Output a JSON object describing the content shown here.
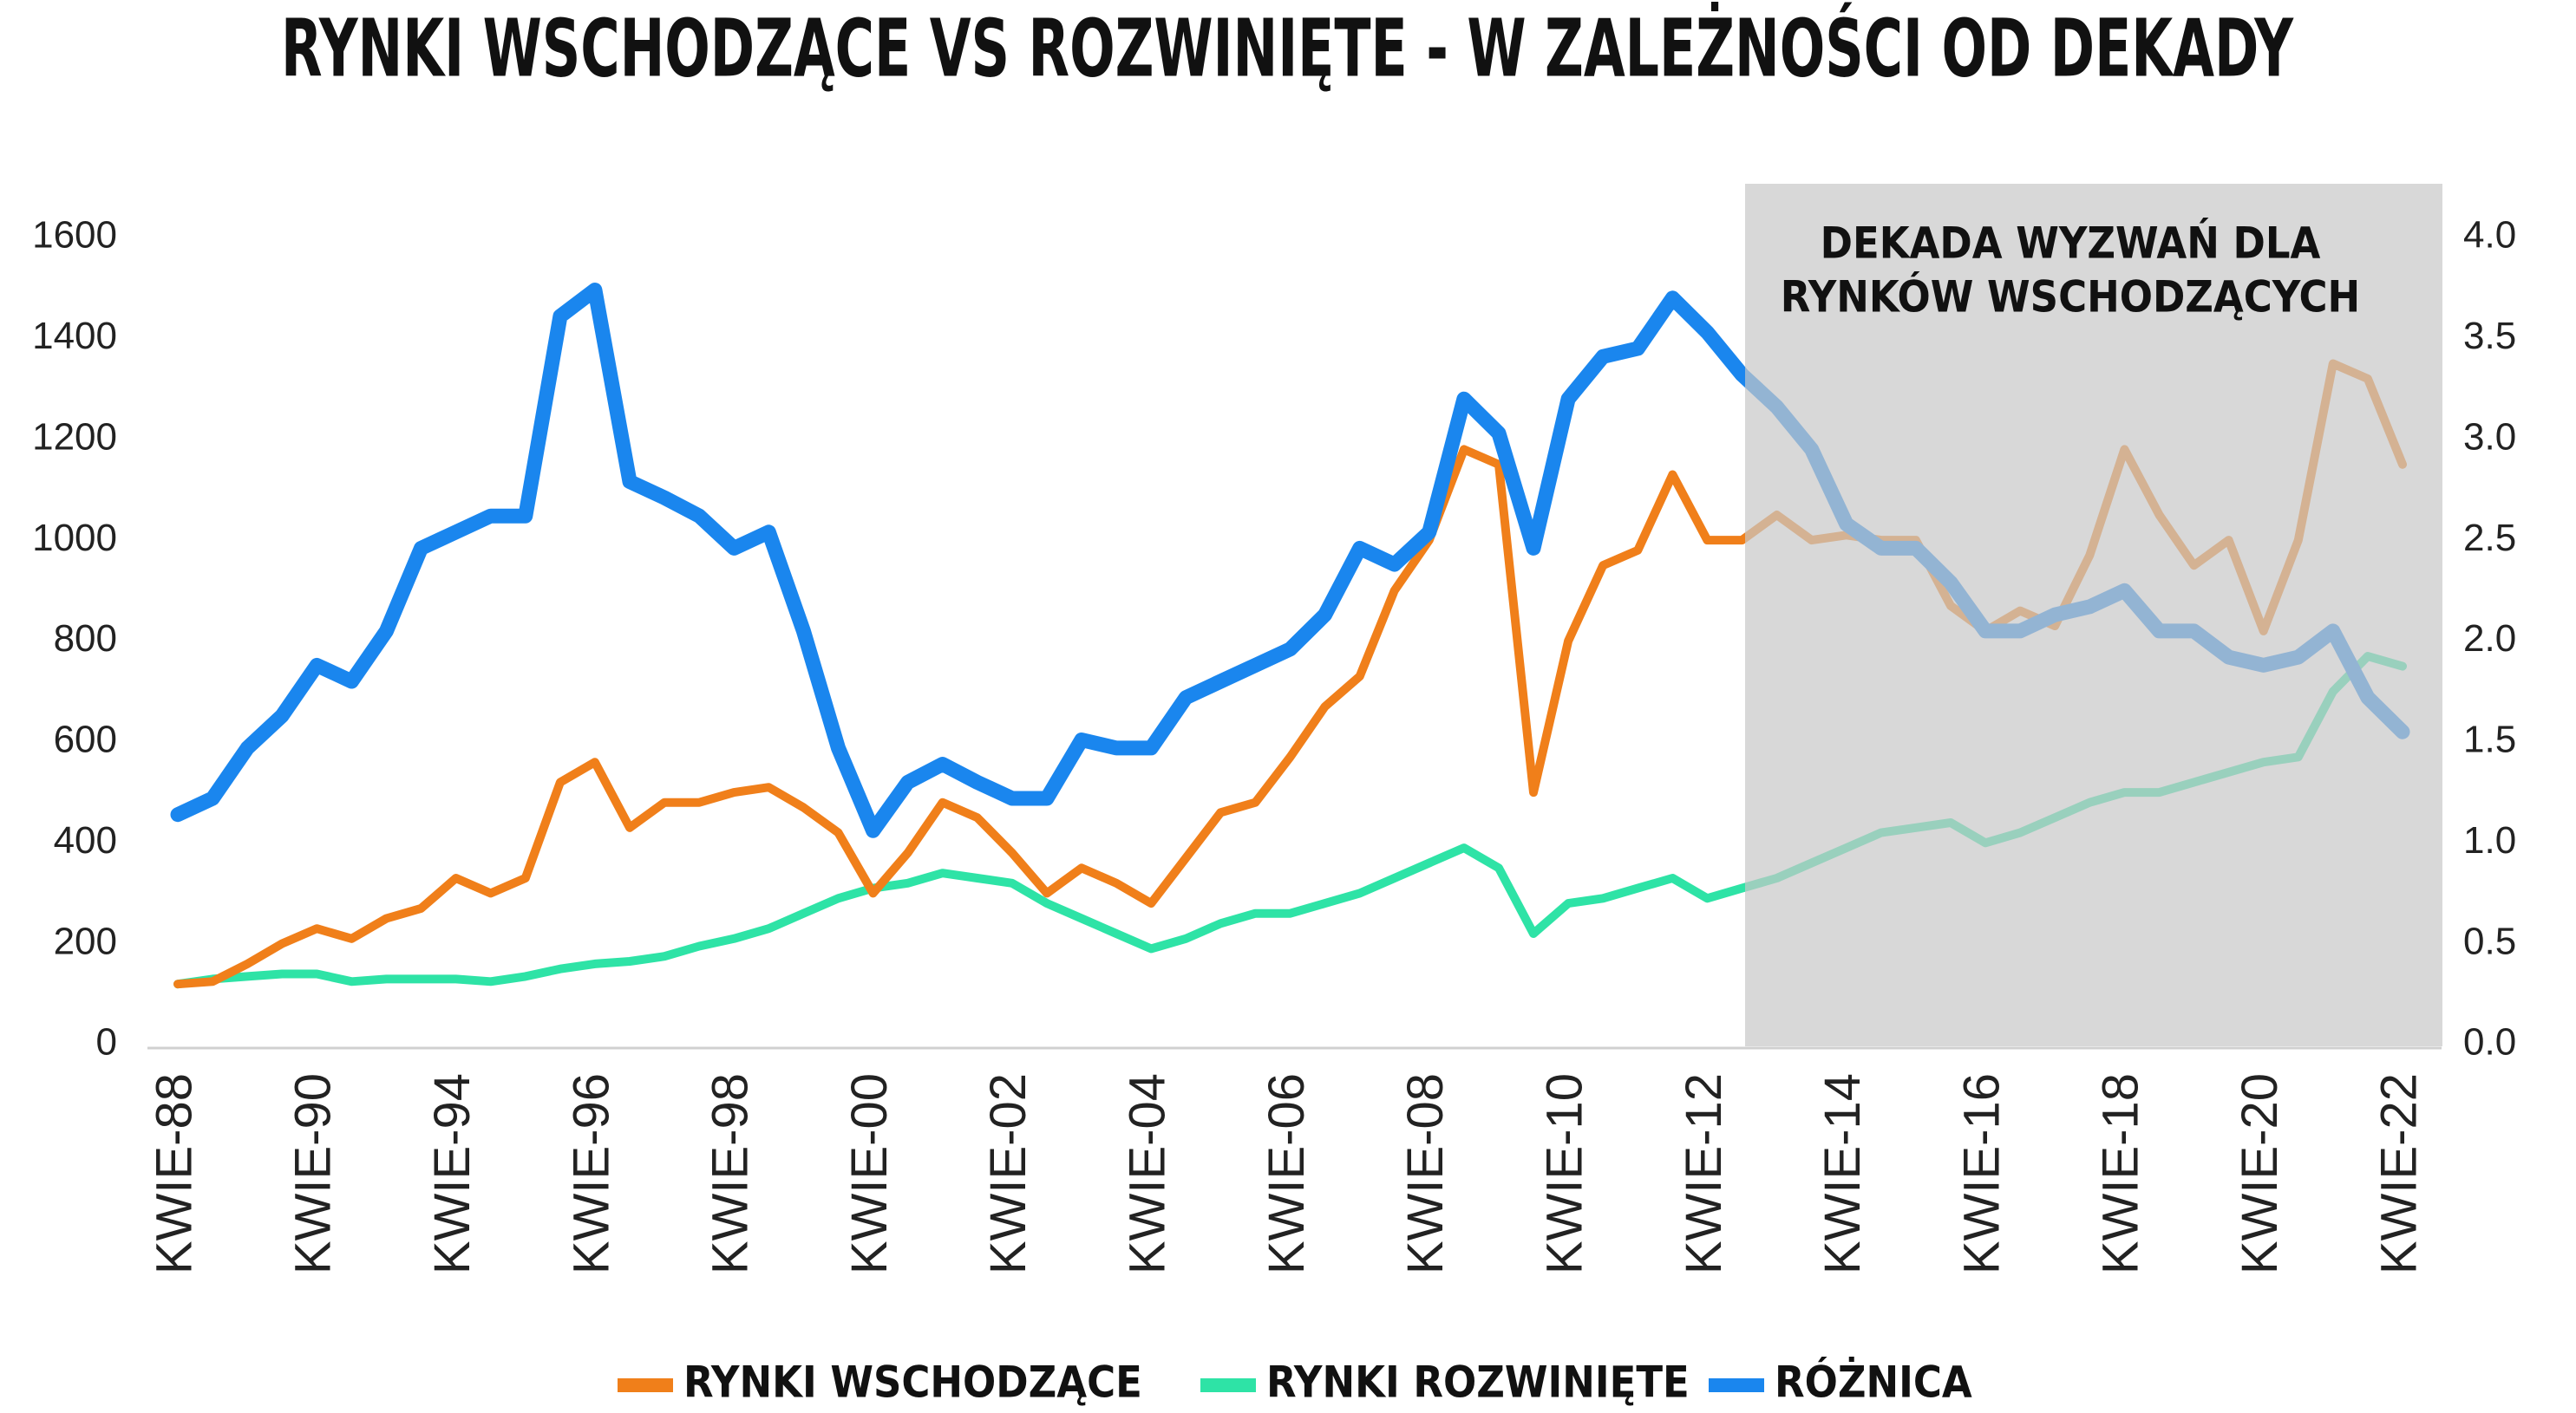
{
  "chart_data": {
    "type": "line",
    "title": "RYNKI WSCHODZĄCE VS ROZWINIĘTE - W ZALEŻNOŚCI OD DEKADY",
    "annotation": [
      "DEKADA WYZWAŃ DLA",
      "RYNKÓW WSCHODZĄCYCH"
    ],
    "categories": [
      "KWIE-88",
      null,
      null,
      null,
      "KWIE-90",
      null,
      null,
      null,
      "KWIE-94",
      null,
      null,
      null,
      "KWIE-96",
      null,
      null,
      null,
      "KWIE-98",
      null,
      null,
      null,
      "KWIE-00",
      null,
      null,
      null,
      "KWIE-02",
      null,
      null,
      null,
      "KWIE-04",
      null,
      null,
      null,
      "KWIE-06",
      null,
      null,
      null,
      "KWIE-08",
      null,
      null,
      null,
      "KWIE-10",
      null,
      null,
      null,
      "KWIE-12",
      null,
      null,
      null,
      "KWIE-14",
      null,
      null,
      null,
      "KWIE-16",
      null,
      null,
      null,
      "KWIE-18",
      null,
      null,
      null,
      "KWIE-20",
      null,
      null,
      null,
      "KWIE-22"
    ],
    "series": [
      {
        "name": "RYNKI WSCHODZĄCE",
        "color": "#f07f1a",
        "axis": "y",
        "values": [
          120,
          125,
          160,
          200,
          230,
          210,
          250,
          270,
          330,
          300,
          330,
          520,
          560,
          430,
          480,
          480,
          500,
          510,
          470,
          420,
          300,
          380,
          480,
          450,
          380,
          300,
          350,
          320,
          280,
          370,
          460,
          480,
          570,
          670,
          730,
          900,
          1000,
          1180,
          1150,
          500,
          800,
          950,
          980,
          1130,
          1000,
          1000,
          1050,
          1000,
          1010,
          1000,
          1000,
          870,
          820,
          860,
          830,
          970,
          1180,
          1050,
          950,
          1000,
          820,
          1000,
          1350,
          1320,
          1150
        ]
      },
      {
        "name": "RYNKI ROZWINIĘTE",
        "color": "#2ee3a6",
        "axis": "y",
        "values": [
          120,
          130,
          135,
          140,
          140,
          125,
          130,
          130,
          130,
          125,
          135,
          150,
          160,
          165,
          175,
          195,
          210,
          230,
          260,
          290,
          310,
          320,
          340,
          330,
          320,
          280,
          250,
          220,
          190,
          210,
          240,
          260,
          260,
          280,
          300,
          330,
          360,
          390,
          350,
          220,
          280,
          290,
          310,
          330,
          290,
          310,
          330,
          360,
          390,
          420,
          430,
          440,
          400,
          420,
          450,
          480,
          500,
          500,
          520,
          540,
          560,
          570,
          700,
          770,
          750
        ]
      },
      {
        "name": "RÓŻNICA",
        "color": "#1a86ee",
        "axis": "y2",
        "values": [
          1.14,
          1.22,
          1.47,
          1.63,
          1.88,
          1.8,
          2.05,
          2.46,
          2.54,
          2.62,
          2.62,
          3.61,
          3.74,
          2.79,
          2.71,
          2.62,
          2.46,
          2.54,
          2.05,
          1.47,
          1.06,
          1.3,
          1.39,
          1.3,
          1.22,
          1.22,
          1.51,
          1.47,
          1.47,
          1.72,
          1.8,
          1.88,
          1.96,
          2.13,
          2.46,
          2.38,
          2.54,
          3.2,
          3.03,
          2.46,
          3.2,
          3.41,
          3.45,
          3.7,
          3.53,
          3.32,
          3.16,
          2.95,
          2.58,
          2.46,
          2.46,
          2.29,
          2.05,
          2.05,
          2.13,
          2.17,
          2.25,
          2.05,
          2.05,
          1.92,
          1.88,
          1.92,
          2.05,
          1.72,
          1.55
        ]
      }
    ],
    "ylim": [
      0,
      1600
    ],
    "yticks": [
      0,
      200,
      400,
      600,
      800,
      1000,
      1200,
      1400,
      1600
    ],
    "y2lim": [
      0,
      4
    ],
    "y2ticks": [
      {
        "value": 0,
        "label": "0.0"
      },
      {
        "value": 0.5,
        "label": "0.5"
      },
      {
        "value": 1,
        "label": "1.0"
      },
      {
        "value": 1.5,
        "label": "1.5"
      },
      {
        "value": 2,
        "label": "2.0"
      },
      {
        "value": 2.5,
        "label": "2.5"
      },
      {
        "value": 3,
        "label": "3.0"
      },
      {
        "value": 3.5,
        "label": "3.5"
      },
      {
        "value": 4,
        "label": "4.0"
      }
    ],
    "grid": false,
    "legend": "bottom"
  }
}
